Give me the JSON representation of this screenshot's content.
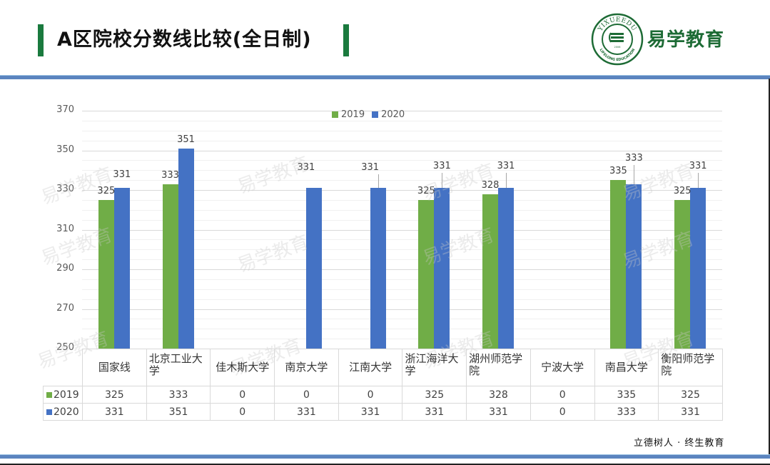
{
  "header": {
    "title": "A区院校分数线比较(全日制)",
    "brand": "易学教育",
    "logo_text_top": "YIXUEEDU",
    "logo_text_bottom": "LIFELONG EDUCATION",
    "logo_year": "2006"
  },
  "footer": {
    "slogan": "立德树人 · 终生教育"
  },
  "watermark": "易学教育",
  "colors": {
    "series_2019": "#70ad47",
    "series_2020": "#4472c4",
    "accent_green": "#1a7a3e",
    "rule_blue": "#5b84bf"
  },
  "chart_data": {
    "type": "bar",
    "title": "",
    "xlabel": "",
    "ylabel": "",
    "ylim": [
      250,
      370
    ],
    "yticks": [
      250,
      270,
      290,
      310,
      330,
      350,
      370
    ],
    "grid": true,
    "legend_position": "top",
    "categories": [
      "国家线",
      "北京工业大学",
      "佳木斯大学",
      "南京大学",
      "江南大学",
      "浙江海洋大学",
      "湖州师范学院",
      "宁波大学",
      "南昌大学",
      "衡阳师范学院"
    ],
    "series": [
      {
        "name": "2019",
        "values": [
          325,
          333,
          0,
          0,
          0,
          325,
          328,
          0,
          335,
          325
        ]
      },
      {
        "name": "2020",
        "values": [
          331,
          351,
          0,
          331,
          331,
          331,
          331,
          0,
          333,
          331
        ]
      }
    ],
    "data_table": true
  },
  "table": {
    "header": [
      "国家线",
      "北京工业大学",
      "佳木斯大学",
      "南京大学",
      "江南大学",
      "浙江海洋大学",
      "湖州师范学院",
      "宁波大学",
      "南昌大学",
      "衡阳师范学院"
    ],
    "rows": [
      {
        "label": "2019",
        "values": [
          "325",
          "333",
          "0",
          "0",
          "0",
          "325",
          "328",
          "0",
          "335",
          "325"
        ]
      },
      {
        "label": "2020",
        "values": [
          "331",
          "351",
          "0",
          "331",
          "331",
          "331",
          "331",
          "0",
          "333",
          "331"
        ]
      }
    ]
  }
}
